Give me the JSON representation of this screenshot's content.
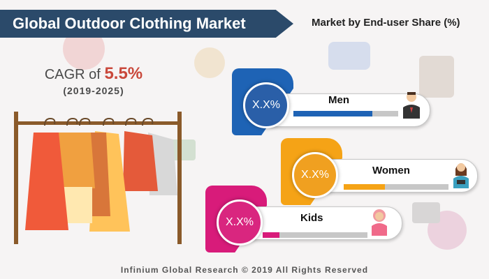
{
  "title": "Global Outdoor Clothing Market",
  "subtitle": "Market by End-user Share (%)",
  "cagr": {
    "prefix": "CAGR of",
    "value": "5.5%",
    "years": "(2019-2025)"
  },
  "segments": [
    {
      "label": "Men",
      "value": "X.X%",
      "color": "#1e63b5",
      "circle_color": "#2a5fa8",
      "fill": 0.75
    },
    {
      "label": "Women",
      "value": "X.X%",
      "color": "#f5a316",
      "circle_color": "#f0a020",
      "fill": 0.39
    },
    {
      "label": "Kids",
      "value": "X.X%",
      "color": "#d81b7a",
      "circle_color": "#d9267f",
      "fill": 0.16
    }
  ],
  "footer": "Infinium Global Research © 2019 All Rights Reserved"
}
